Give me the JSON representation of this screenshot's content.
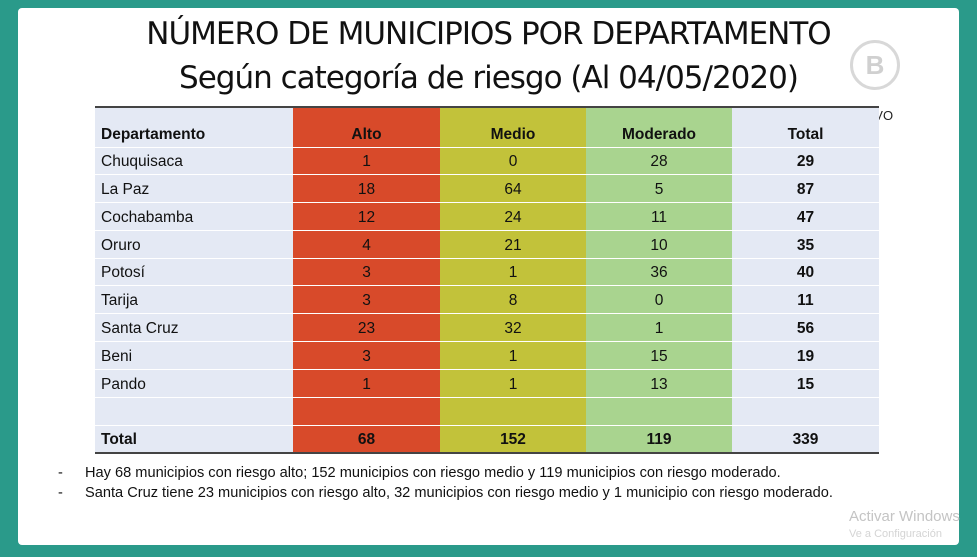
{
  "title_line1": "NÚMERO DE MUNICIPIOS POR DEPARTAMENTO",
  "title_line2": "Según categoría de riesgo (Al 04/05/2020)",
  "logo_letter": "B",
  "live_label": "VIVO",
  "table": {
    "headers": [
      "Departamento",
      "Alto",
      "Medio",
      "Moderado",
      "Total"
    ],
    "rows": [
      [
        "Chuquisaca",
        "1",
        "0",
        "28",
        "29"
      ],
      [
        "La Paz",
        "18",
        "64",
        "5",
        "87"
      ],
      [
        "Cochabamba",
        "12",
        "24",
        "11",
        "47"
      ],
      [
        "Oruro",
        "4",
        "21",
        "10",
        "35"
      ],
      [
        "Potosí",
        "3",
        "1",
        "36",
        "40"
      ],
      [
        "Tarija",
        "3",
        "8",
        "0",
        "11"
      ],
      [
        "Santa Cruz",
        "23",
        "32",
        "1",
        "56"
      ],
      [
        "Beni",
        "3",
        "1",
        "15",
        "19"
      ],
      [
        "Pando",
        "1",
        "1",
        "13",
        "15"
      ]
    ],
    "total_row": [
      "Total",
      "68",
      "152",
      "119",
      "339"
    ]
  },
  "notes": [
    "Hay 68 municipios con riesgo alto; 152 municipios con riesgo medio y 119 municipios con riesgo moderado.",
    "Santa Cruz tiene 23 municipios con riesgo alto, 32 municipios con riesgo medio y 1 municipio con riesgo moderado."
  ],
  "note_bullet": "-",
  "watermark": "Activar Windows",
  "watermark_sub": "Ve a Configuración"
}
